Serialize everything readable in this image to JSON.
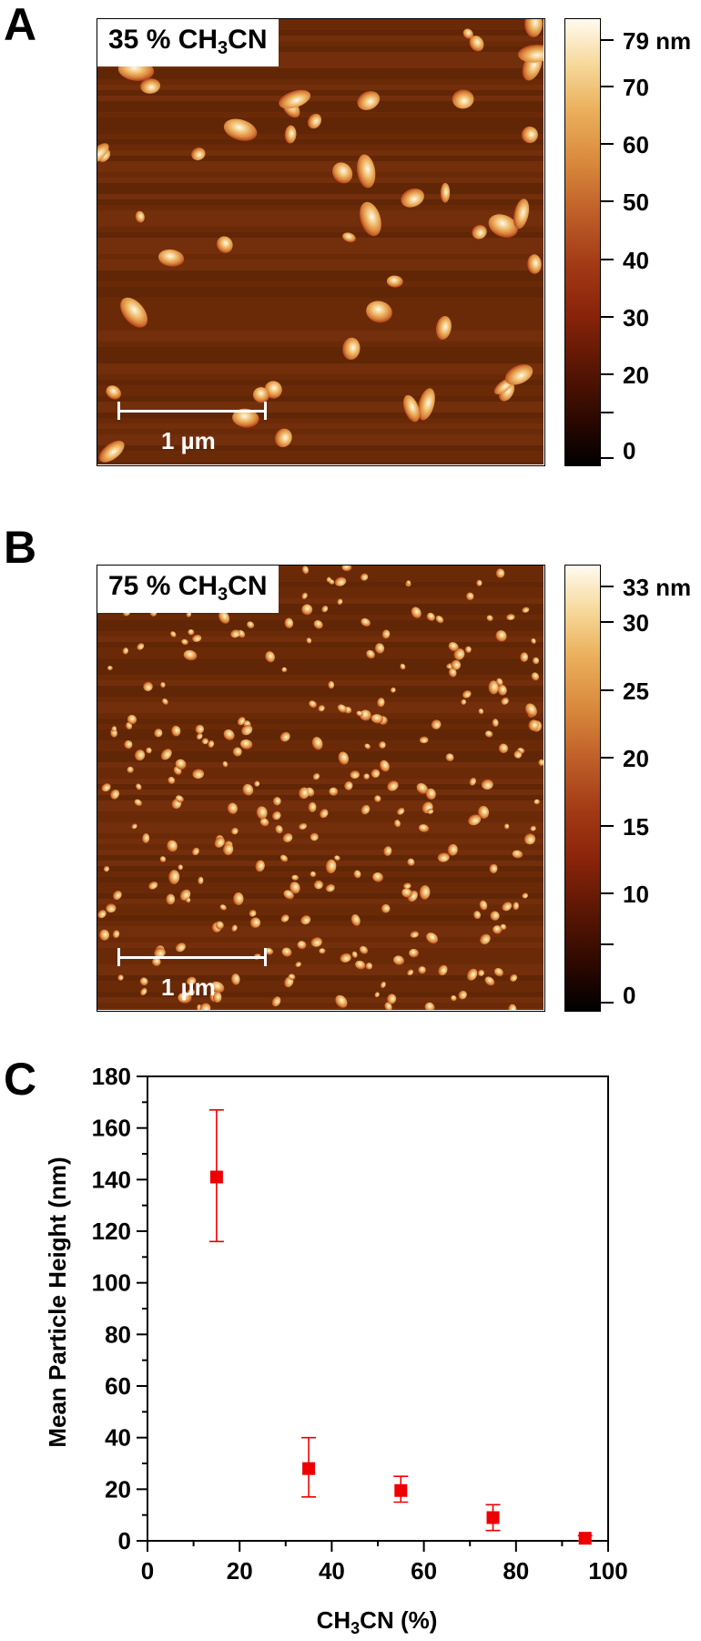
{
  "panels": {
    "a": {
      "letter": "A",
      "condition_prefix": "35 % CH",
      "condition_sub": "3",
      "condition_suffix": "CN",
      "scalebar_label": "1 µm",
      "colorbar_max_label": "79 nm",
      "colorbar_ticks": [
        "70",
        "60",
        "50",
        "40",
        "30",
        "20",
        "0"
      ]
    },
    "b": {
      "letter": "B",
      "condition_prefix": "75 % CH",
      "condition_sub": "3",
      "condition_suffix": "CN",
      "scalebar_label": "1 µm",
      "colorbar_max_label": "33 nm",
      "colorbar_ticks": [
        "30",
        "25",
        "20",
        "15",
        "10",
        "0"
      ]
    },
    "c": {
      "letter": "C"
    }
  },
  "colors": {
    "marker": "#ee0000",
    "afm_background": "#6b2a08",
    "afm_colormap": [
      "#000000",
      "#3a0a00",
      "#7a1e05",
      "#b3411a",
      "#d9833b",
      "#f0c070",
      "#fff8ec"
    ]
  },
  "chart_data": {
    "type": "scatter",
    "title": "",
    "xlabel_prefix": "CH",
    "xlabel_sub": "3",
    "xlabel_suffix": "CN (%)",
    "ylabel": "Mean Particle Height (nm)",
    "xlim": [
      0,
      100
    ],
    "ylim": [
      0,
      180
    ],
    "xticks": [
      0,
      20,
      40,
      60,
      80,
      100
    ],
    "yticks": [
      0,
      20,
      40,
      60,
      80,
      100,
      120,
      140,
      160,
      180
    ],
    "grid": false,
    "series": [
      {
        "x": [
          15,
          35,
          55,
          75,
          95
        ],
        "y": [
          141,
          28,
          19.5,
          9,
          1
        ],
        "error_low": [
          116,
          17,
          15,
          4,
          0
        ],
        "error_high": [
          167,
          40,
          25,
          14,
          2
        ]
      }
    ]
  }
}
